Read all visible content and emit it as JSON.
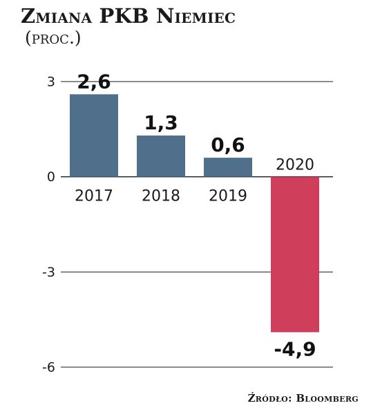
{
  "title": "Zmiana PKB Niemiec",
  "subtitle": "(proc.)",
  "source": "Źródło: Bloomberg",
  "colors": {
    "positive": "#4f6f8a",
    "negative": "#cf3f5c",
    "grid": "#1a1a1a"
  },
  "chart_data": {
    "type": "bar",
    "categories": [
      "2017",
      "2018",
      "2019",
      "2020"
    ],
    "values": [
      2.6,
      1.3,
      0.6,
      -4.9
    ],
    "value_labels": [
      "2,6",
      "1,3",
      "0,6",
      "-4,9"
    ],
    "title": "Zmiana PKB Niemiec",
    "subtitle": "(proc.)",
    "ylim": [
      -6,
      3
    ],
    "yticks": [
      3,
      0,
      -3,
      -6
    ],
    "ytick_labels": [
      "3",
      "0",
      "-3",
      "-6"
    ],
    "grid": true
  }
}
